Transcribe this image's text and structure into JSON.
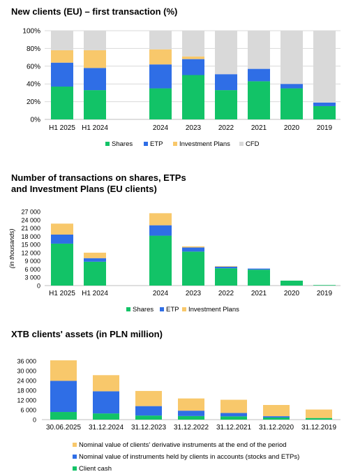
{
  "palette": {
    "shares": "#12c367",
    "etp": "#2f6ee6",
    "plans": "#f8c86b",
    "cfd": "#d9d9d9",
    "grid": "#d9d9d9",
    "axis": "#bfbfbf"
  },
  "charts": [
    {
      "type": "bar",
      "stacked": true,
      "title": "New clients (EU) – first transaction (%)",
      "categories": [
        "H1 2025",
        "H1 2024",
        "",
        "2024",
        "2023",
        "2022",
        "2021",
        "2020",
        "2019"
      ],
      "ylim": [
        0,
        100
      ],
      "yticks": [
        0,
        20,
        40,
        60,
        80,
        100
      ],
      "ytick_labels": [
        "0%",
        "20%",
        "40%",
        "60%",
        "80%",
        "100%"
      ],
      "ylabel": "",
      "grid": true,
      "legend": "bottom",
      "series": [
        {
          "name": "Shares",
          "color_key": "shares",
          "values": [
            37,
            33,
            null,
            35,
            50,
            33,
            43,
            35,
            15
          ]
        },
        {
          "name": "ETP",
          "color_key": "etp",
          "values": [
            27,
            25,
            null,
            27,
            18,
            18,
            14,
            5,
            4
          ]
        },
        {
          "name": "Investment Plans",
          "color_key": "plans",
          "values": [
            14,
            20,
            null,
            17,
            3,
            0,
            0,
            0,
            0
          ]
        },
        {
          "name": "CFD",
          "color_key": "cfd",
          "values": [
            22,
            22,
            null,
            21,
            29,
            49,
            43,
            60,
            81
          ]
        }
      ]
    },
    {
      "type": "bar",
      "stacked": true,
      "title": "Number of transactions on shares, ETPs and Investment Plans (EU clients)",
      "title_lines": [
        "Number of transactions on shares, ETPs",
        "and Investment Plans (EU clients)"
      ],
      "categories": [
        "H1 2025",
        "H1 2024",
        "",
        "2024",
        "2023",
        "2022",
        "2021",
        "2020",
        "2019"
      ],
      "ylim": [
        0,
        27000
      ],
      "yticks": [
        0,
        3000,
        6000,
        9000,
        12000,
        15000,
        18000,
        21000,
        24000,
        27000
      ],
      "ytick_labels": [
        "0",
        "3 000",
        "6 000",
        "9 000",
        "12 000",
        "15 000",
        "18 000",
        "21 000",
        "24 000",
        "27 000"
      ],
      "ylabel": "(in thousands)",
      "grid": false,
      "legend": "bottom",
      "series": [
        {
          "name": "Shares",
          "color_key": "shares",
          "values": [
            15300,
            8700,
            null,
            18200,
            12400,
            6300,
            5800,
            1800,
            200
          ]
        },
        {
          "name": "ETP",
          "color_key": "etp",
          "values": [
            3300,
            1300,
            null,
            3800,
            1500,
            600,
            400,
            0,
            0
          ]
        },
        {
          "name": "Investment Plans",
          "color_key": "plans",
          "values": [
            4000,
            2000,
            null,
            4400,
            400,
            200,
            0,
            0,
            0
          ]
        }
      ]
    },
    {
      "type": "bar",
      "stacked": true,
      "title": "XTB clients' assets (in PLN million)",
      "categories": [
        "30.06.2025",
        "31.12.2024",
        "31.12.2023",
        "31.12.2022",
        "31.12.2021",
        "31.12.2020",
        "31.12.2019"
      ],
      "ylim": [
        0,
        36000
      ],
      "yticks": [
        0,
        6000,
        12000,
        18000,
        24000,
        30000,
        36000
      ],
      "ytick_labels": [
        "0",
        "6 000",
        "12 000",
        "18 000",
        "24 000",
        "30 000",
        "36 000"
      ],
      "ylabel": "",
      "grid": false,
      "legend": "bottom-stacked",
      "series": [
        {
          "name": "Client cash",
          "color_key": "shares",
          "values": [
            4700,
            3800,
            2500,
            2200,
            2000,
            1300,
            1000
          ]
        },
        {
          "name": "Nominal value of instruments held by clients in accounts (stocks and ETPs)",
          "color_key": "etp",
          "values": [
            19100,
            13600,
            5800,
            3300,
            2100,
            800,
            0
          ]
        },
        {
          "name": "Nominal value of clients' derivative instruments at the end of the period",
          "color_key": "plans",
          "values": [
            12600,
            9900,
            9300,
            7500,
            8100,
            6900,
            5200
          ]
        }
      ]
    }
  ]
}
